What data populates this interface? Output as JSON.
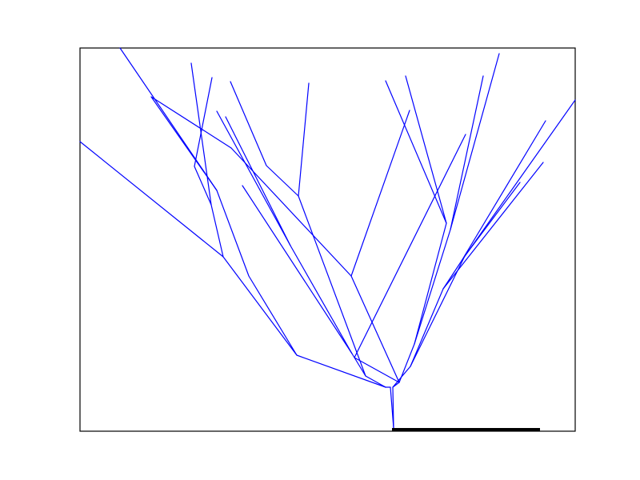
{
  "figure": {
    "type": "tree-diagram",
    "line_color": "#0000ff",
    "frame_color": "#000000",
    "scale_bar_color": "#000000",
    "background": "#ffffff"
  }
}
